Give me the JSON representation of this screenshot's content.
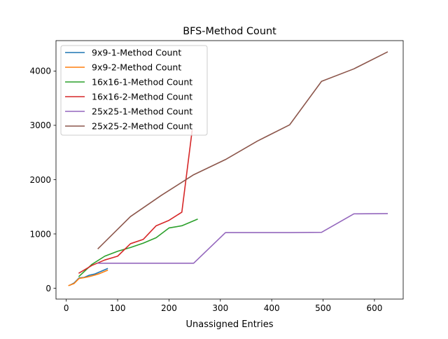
{
  "chart_data": {
    "type": "line",
    "title": "BFS-Method Count",
    "xlabel": "Unassigned Entries",
    "ylabel": "",
    "xlim": [
      -20,
      656
    ],
    "ylim": [
      -200,
      4560
    ],
    "x_ticks": [
      0,
      100,
      200,
      300,
      400,
      500,
      600
    ],
    "y_ticks": [
      0,
      1000,
      2000,
      3000,
      4000
    ],
    "grid": false,
    "legend_position": "top-left",
    "series": [
      {
        "name": "9x9-1-Method Count",
        "color": "#1f77b4",
        "points": [
          [
            7,
            55
          ],
          [
            15,
            95
          ],
          [
            25,
            190
          ],
          [
            35,
            200
          ],
          [
            45,
            240
          ],
          [
            55,
            260
          ],
          [
            65,
            300
          ],
          [
            80,
            360
          ]
        ]
      },
      {
        "name": "9x9-2-Method Count",
        "color": "#ff7f0e",
        "points": [
          [
            5,
            50
          ],
          [
            15,
            85
          ],
          [
            25,
            180
          ],
          [
            35,
            195
          ],
          [
            45,
            215
          ],
          [
            55,
            240
          ],
          [
            65,
            270
          ],
          [
            80,
            330
          ]
        ]
      },
      {
        "name": "16x16-1-Method Count",
        "color": "#2ca02c",
        "points": [
          [
            25,
            220
          ],
          [
            50,
            440
          ],
          [
            75,
            590
          ],
          [
            100,
            680
          ],
          [
            125,
            750
          ],
          [
            150,
            830
          ],
          [
            175,
            930
          ],
          [
            200,
            1110
          ],
          [
            225,
            1150
          ],
          [
            255,
            1270
          ]
        ]
      },
      {
        "name": "16x16-2-Method Count",
        "color": "#d62728",
        "points": [
          [
            25,
            280
          ],
          [
            50,
            420
          ],
          [
            75,
            520
          ],
          [
            100,
            590
          ],
          [
            125,
            820
          ],
          [
            150,
            900
          ],
          [
            175,
            1150
          ],
          [
            200,
            1250
          ],
          [
            225,
            1400
          ],
          [
            245,
            2900
          ]
        ]
      },
      {
        "name": "25x25-1-Method Count",
        "color": "#9467bd",
        "points": [
          [
            62,
            460
          ],
          [
            125,
            460
          ],
          [
            185,
            460
          ],
          [
            248,
            460
          ],
          [
            310,
            1025
          ],
          [
            372,
            1025
          ],
          [
            435,
            1025
          ],
          [
            497,
            1030
          ],
          [
            560,
            1370
          ],
          [
            625,
            1375
          ]
        ]
      },
      {
        "name": "25x25-2-Method Count",
        "color": "#8c564b",
        "points": [
          [
            62,
            730
          ],
          [
            125,
            1320
          ],
          [
            185,
            1710
          ],
          [
            248,
            2090
          ],
          [
            310,
            2370
          ],
          [
            372,
            2710
          ],
          [
            435,
            3010
          ],
          [
            497,
            3810
          ],
          [
            560,
            4040
          ],
          [
            625,
            4350
          ]
        ]
      }
    ]
  }
}
